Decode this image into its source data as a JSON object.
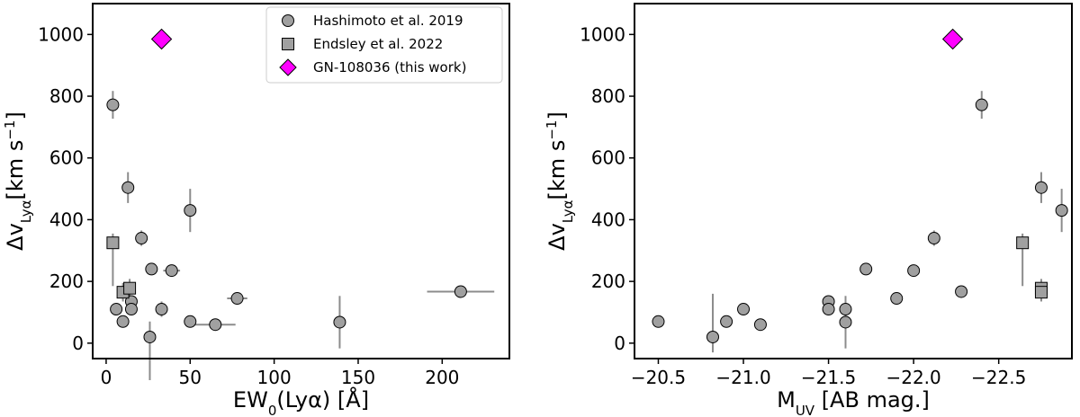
{
  "chart_data": [
    {
      "type": "scatter",
      "xlabel": "EW₀(Lyα) [Å]",
      "ylabel": "Δv_Lyα[km s⁻¹]",
      "xlim": [
        -8,
        240
      ],
      "ylim": [
        -50,
        1100
      ],
      "xticks": [
        0,
        50,
        100,
        150,
        200
      ],
      "yticks": [
        0,
        200,
        400,
        600,
        800,
        1000
      ],
      "legend": {
        "position": "top-right",
        "entries": [
          {
            "label": "Hashimoto et al. 2019",
            "marker": "circle",
            "color": "#a0a0a0"
          },
          {
            "label": "Endsley et al. 2022",
            "marker": "square",
            "color": "#a0a0a0"
          },
          {
            "label": "GN-108036 (this work)",
            "marker": "diamond",
            "color": "#ff00ff"
          }
        ]
      },
      "series": [
        {
          "name": "Hashimoto et al. 2019",
          "marker": "circle",
          "points": [
            {
              "x": 4,
              "y": 772,
              "yerr": [
                45,
                45
              ]
            },
            {
              "x": 13,
              "y": 504,
              "yerr": [
                50,
                50
              ]
            },
            {
              "x": 50,
              "y": 430,
              "yerr": [
                70,
                70
              ]
            },
            {
              "x": 21,
              "y": 340,
              "yerr": [
                25,
                25
              ]
            },
            {
              "x": 27,
              "y": 240
            },
            {
              "x": 39,
              "y": 235,
              "xerr": [
                5,
                5
              ]
            },
            {
              "x": 78,
              "y": 145,
              "xerr": [
                6,
                6
              ]
            },
            {
              "x": 15,
              "y": 135,
              "xerr": [
                2,
                2
              ]
            },
            {
              "x": 6,
              "y": 110
            },
            {
              "x": 15,
              "y": 110,
              "xerr": [
                3,
                3
              ]
            },
            {
              "x": 33,
              "y": 110,
              "yerr": [
                25,
                25
              ]
            },
            {
              "x": 10,
              "y": 70
            },
            {
              "x": 50,
              "y": 70
            },
            {
              "x": 65,
              "y": 60,
              "xerr": [
                12,
                12
              ]
            },
            {
              "x": 139,
              "y": 68,
              "yerr": [
                85,
                85
              ]
            },
            {
              "x": 26,
              "y": 20,
              "yerr": [
                140,
                50
              ]
            },
            {
              "x": 211,
              "y": 167,
              "xerr": [
                20,
                20
              ]
            }
          ]
        },
        {
          "name": "Endsley et al. 2022",
          "marker": "square",
          "points": [
            {
              "x": 4,
              "y": 325,
              "yerr": [
                140,
                30
              ]
            },
            {
              "x": 10,
              "y": 165,
              "yerr": [
                30,
                30
              ]
            },
            {
              "x": 14,
              "y": 178,
              "yerr": [
                30,
                30
              ]
            }
          ]
        },
        {
          "name": "GN-108036 (this work)",
          "marker": "diamond",
          "points": [
            {
              "x": 33,
              "y": 985
            }
          ]
        }
      ]
    },
    {
      "type": "scatter",
      "xlabel": "M_UV [AB mag.]",
      "ylabel": "Δv_Lyα[km s⁻¹]",
      "xlim": [
        -20.36,
        -22.93
      ],
      "ylim": [
        -50,
        1100
      ],
      "xticks": [
        -20.5,
        -21.0,
        -21.5,
        -22.0,
        -22.5
      ],
      "xtick_labels": [
        "−20.5",
        "−21.0",
        "−21.5",
        "−22.0",
        "−22.5"
      ],
      "yticks": [
        0,
        200,
        400,
        600,
        800,
        1000
      ],
      "series": [
        {
          "name": "Hashimoto et al. 2019",
          "marker": "circle",
          "points": [
            {
              "x": -20.5,
              "y": 70
            },
            {
              "x": -20.82,
              "y": 20,
              "yerr": [
                50,
                140
              ]
            },
            {
              "x": -20.9,
              "y": 70
            },
            {
              "x": -21.0,
              "y": 110
            },
            {
              "x": -21.1,
              "y": 60
            },
            {
              "x": -21.5,
              "y": 135
            },
            {
              "x": -21.5,
              "y": 110
            },
            {
              "x": -21.6,
              "y": 110
            },
            {
              "x": -21.6,
              "y": 68,
              "yerr": [
                85,
                85
              ]
            },
            {
              "x": -21.72,
              "y": 240
            },
            {
              "x": -21.9,
              "y": 145
            },
            {
              "x": -22.0,
              "y": 235
            },
            {
              "x": -22.12,
              "y": 340,
              "yerr": [
                25,
                25
              ]
            },
            {
              "x": -22.28,
              "y": 167
            },
            {
              "x": -22.4,
              "y": 772,
              "yerr": [
                45,
                45
              ]
            },
            {
              "x": -22.75,
              "y": 504,
              "yerr": [
                50,
                50
              ]
            },
            {
              "x": -22.87,
              "y": 430,
              "yerr": [
                70,
                70
              ]
            }
          ]
        },
        {
          "name": "Endsley et al. 2022",
          "marker": "square",
          "points": [
            {
              "x": -22.64,
              "y": 325,
              "yerr": [
                140,
                30
              ]
            },
            {
              "x": -22.75,
              "y": 178,
              "yerr": [
                30,
                30
              ]
            },
            {
              "x": -22.75,
              "y": 165,
              "yerr": [
                30,
                30
              ]
            }
          ]
        },
        {
          "name": "GN-108036 (this work)",
          "marker": "diamond",
          "points": [
            {
              "x": -22.23,
              "y": 985
            }
          ]
        }
      ]
    }
  ],
  "colors": {
    "marker_fill": "#a0a0a0",
    "errorbar": "#8c8c8c",
    "highlight": "#ff00ff"
  }
}
